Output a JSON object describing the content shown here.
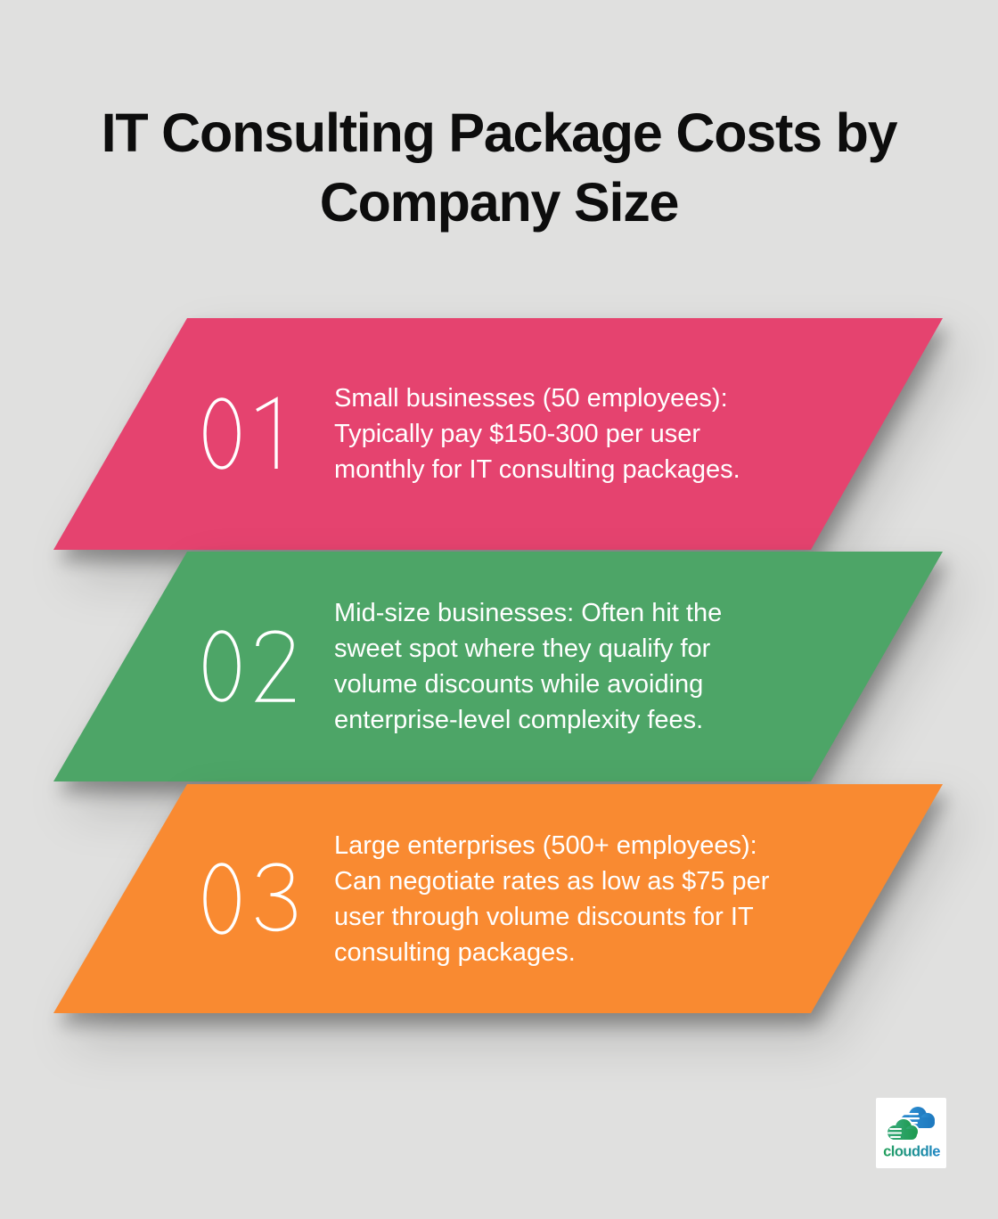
{
  "page": {
    "background": "#e0e0df"
  },
  "title": {
    "line1": "IT Consulting Package Costs by",
    "line2": "Company Size",
    "color": "#0d0d0d"
  },
  "banners": [
    {
      "number": "01",
      "color": "#e5436f",
      "lines": [
        "Small businesses (50 employees):",
        "Typically pay $150-300 per user",
        "monthly for IT consulting packages."
      ]
    },
    {
      "number": "02",
      "color": "#4da567",
      "lines": [
        "Mid-size businesses: Often hit the",
        "sweet spot where they qualify for",
        "volume discounts while avoiding",
        "enterprise-level complexity fees."
      ]
    },
    {
      "number": "03",
      "color": "#f98a31",
      "lines": [
        "Large enterprises (500+ employees):",
        "Can negotiate rates as low as $75 per",
        "user through volume discounts for IT",
        "consulting packages."
      ]
    }
  ],
  "logo": {
    "name": "clouddle",
    "cloud_green_light": "#35a878",
    "cloud_green_dark": "#1e9b50",
    "cloud_blue_light": "#2e8fd2",
    "cloud_blue_dark": "#1d78be",
    "text_green": "#23a05a",
    "text_blue": "#1f86c8"
  }
}
